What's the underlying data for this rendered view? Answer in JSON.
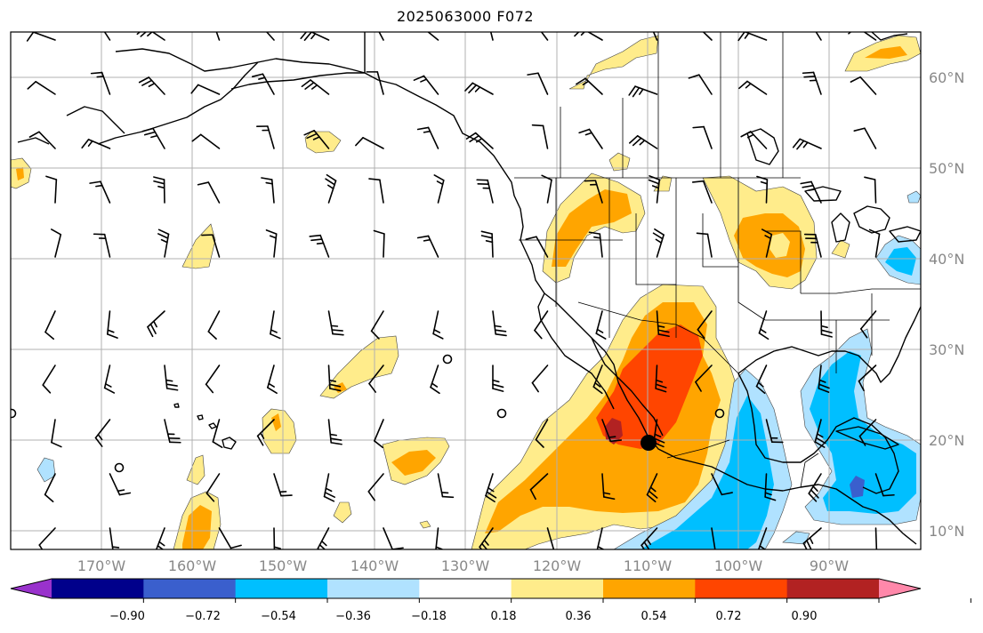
{
  "title": "2025063000 F072",
  "map": {
    "lon_labels": [
      "170°W",
      "160°W",
      "150°W",
      "140°W",
      "130°W",
      "120°W",
      "110°W",
      "100°W",
      "90°W"
    ],
    "lat_labels": [
      "60°N",
      "50°N",
      "40°N",
      "30°N",
      "20°N",
      "10°N"
    ],
    "grid": true,
    "storm_center_marker": "black-dot"
  },
  "colorbar": {
    "colors": [
      "#9932cc",
      "#00008b",
      "#3a5fcd",
      "#00bfff",
      "#b0e2ff",
      "#ffffff",
      "#ffec8b",
      "#ffa500",
      "#ff4500",
      "#b22222",
      "#ff88aa"
    ],
    "tick_labels": [
      "−0.90",
      "−0.72",
      "−0.54",
      "−0.36",
      "−0.18",
      "0.18",
      "0.36",
      "0.54",
      "0.72",
      "0.90"
    ],
    "extend": "both"
  }
}
